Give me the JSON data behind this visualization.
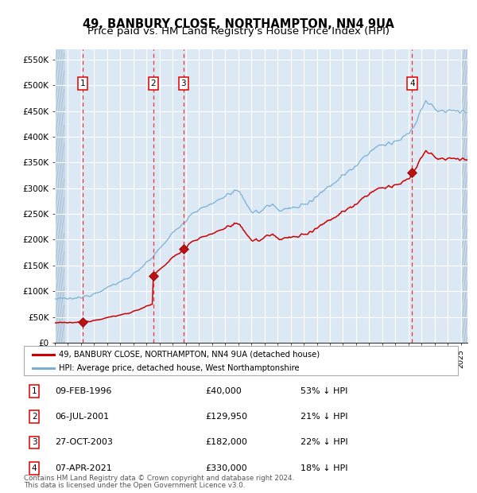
{
  "title": "49, BANBURY CLOSE, NORTHAMPTON, NN4 9UA",
  "subtitle": "Price paid vs. HM Land Registry's House Price Index (HPI)",
  "legend_line1": "49, BANBURY CLOSE, NORTHAMPTON, NN4 9UA (detached house)",
  "legend_line2": "HPI: Average price, detached house, West Northamptonshire",
  "footer_line1": "Contains HM Land Registry data © Crown copyright and database right 2024.",
  "footer_line2": "This data is licensed under the Open Government Licence v3.0.",
  "transactions": [
    {
      "num": 1,
      "date": "09-FEB-1996",
      "date_x": 1996.11,
      "price": 40000,
      "pct": "53% ↓ HPI"
    },
    {
      "num": 2,
      "date": "06-JUL-2001",
      "date_x": 2001.51,
      "price": 129950,
      "pct": "21% ↓ HPI"
    },
    {
      "num": 3,
      "date": "27-OCT-2003",
      "date_x": 2003.82,
      "price": 182000,
      "pct": "22% ↓ HPI"
    },
    {
      "num": 4,
      "date": "07-APR-2021",
      "date_x": 2021.27,
      "price": 330000,
      "pct": "18% ↓ HPI"
    }
  ],
  "table_rows": [
    {
      "num": 1,
      "date": "09-FEB-1996",
      "price": "£40,000",
      "pct": "53% ↓ HPI"
    },
    {
      "num": 2,
      "date": "06-JUL-2001",
      "price": "£129,950",
      "pct": "21% ↓ HPI"
    },
    {
      "num": 3,
      "date": "27-OCT-2003",
      "price": "£182,000",
      "pct": "22% ↓ HPI"
    },
    {
      "num": 4,
      "date": "07-APR-2021",
      "price": "£330,000",
      "pct": "18% ↓ HPI"
    }
  ],
  "xmin": 1994.0,
  "xmax": 2025.5,
  "ymin": 0,
  "ymax": 570000,
  "yticks": [
    0,
    50000,
    100000,
    150000,
    200000,
    250000,
    300000,
    350000,
    400000,
    450000,
    500000,
    550000
  ],
  "ytick_labels": [
    "£0",
    "£50K",
    "£100K",
    "£150K",
    "£200K",
    "£250K",
    "£300K",
    "£350K",
    "£400K",
    "£450K",
    "£500K",
    "£550K"
  ],
  "bg_color": "#dce9f5",
  "grid_color": "#ffffff",
  "red_line_color": "#cc0000",
  "blue_line_color": "#7aafd4",
  "dashed_line_color": "#ee3333",
  "box_color": "#dd0000",
  "title_fontsize": 10.5,
  "subtitle_fontsize": 9.5,
  "hatch_left_end": 1994.7,
  "hatch_right_start": 2025.1
}
